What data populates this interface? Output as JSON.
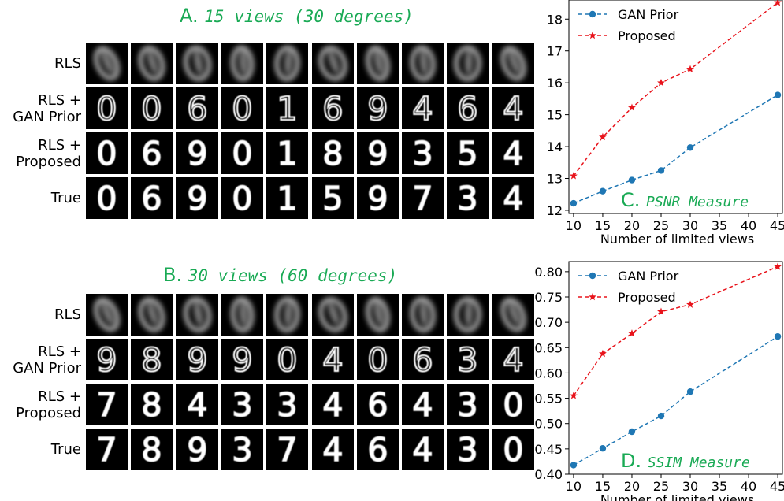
{
  "panel_a": {
    "letter": "A.",
    "description": "15 views (30 degrees)",
    "rows": [
      {
        "label_lines": [
          "RLS"
        ]
      },
      {
        "label_lines": [
          "RLS +",
          "GAN Prior"
        ]
      },
      {
        "label_lines": [
          "RLS +",
          "Proposed"
        ]
      },
      {
        "label_lines": [
          "True"
        ]
      }
    ],
    "true_digits": [
      "0",
      "6",
      "9",
      "0",
      "1",
      "5",
      "9",
      "7",
      "3",
      "4"
    ],
    "proposed_digits": [
      "0",
      "6",
      "9",
      "0",
      "1",
      "8",
      "9",
      "3",
      "5",
      "4"
    ],
    "gan_digits": [
      "0",
      "0",
      "6",
      "0",
      "1",
      "6",
      "9",
      "4",
      "6",
      "4"
    ]
  },
  "panel_b": {
    "letter": "B.",
    "description": "30 views (60 degrees)",
    "rows": [
      {
        "label_lines": [
          "RLS"
        ]
      },
      {
        "label_lines": [
          "RLS +",
          "GAN Prior"
        ]
      },
      {
        "label_lines": [
          "RLS +",
          "Proposed"
        ]
      },
      {
        "label_lines": [
          "True"
        ]
      }
    ],
    "true_digits": [
      "7",
      "8",
      "9",
      "3",
      "7",
      "4",
      "6",
      "4",
      "3",
      "0"
    ],
    "proposed_digits": [
      "7",
      "8",
      "4",
      "3",
      "3",
      "4",
      "6",
      "4",
      "3",
      "0"
    ],
    "gan_digits": [
      "9",
      "8",
      "9",
      "9",
      "0",
      "4",
      "0",
      "6",
      "3",
      "4"
    ]
  },
  "chart_data": [
    {
      "type": "line",
      "label_letter": "C.",
      "label_text": "PSNR Measure",
      "xlabel": "Number of limited views",
      "ylabel": "",
      "x": [
        10,
        15,
        20,
        25,
        30,
        45
      ],
      "xticks": [
        10,
        15,
        20,
        25,
        30,
        35,
        40,
        45
      ],
      "ylim": [
        11.9,
        18.6
      ],
      "yticks": [
        12,
        13,
        14,
        15,
        16,
        17,
        18
      ],
      "legend_position": "top-left",
      "series": [
        {
          "name": "GAN Prior",
          "values": [
            12.22,
            12.6,
            12.95,
            13.25,
            13.97,
            15.62
          ],
          "color": "#1f77b4",
          "marker": "circle"
        },
        {
          "name": "Proposed",
          "values": [
            13.08,
            14.3,
            15.22,
            16.0,
            16.43,
            18.52
          ],
          "color": "#e8131b",
          "marker": "star"
        }
      ]
    },
    {
      "type": "line",
      "label_letter": "D.",
      "label_text": "SSIM Measure",
      "xlabel": "Number of limited views",
      "ylabel": "",
      "x": [
        10,
        15,
        20,
        25,
        30,
        45
      ],
      "xticks": [
        10,
        15,
        20,
        25,
        30,
        35,
        40,
        45
      ],
      "ylim": [
        0.4,
        0.82
      ],
      "yticks": [
        0.4,
        0.45,
        0.5,
        0.55,
        0.6,
        0.65,
        0.7,
        0.75,
        0.8
      ],
      "legend_position": "top-left",
      "series": [
        {
          "name": "GAN Prior",
          "values": [
            0.418,
            0.451,
            0.484,
            0.515,
            0.563,
            0.672
          ],
          "color": "#1f77b4",
          "marker": "circle"
        },
        {
          "name": "Proposed",
          "values": [
            0.555,
            0.638,
            0.678,
            0.721,
            0.735,
            0.81
          ],
          "color": "#e8131b",
          "marker": "star"
        }
      ]
    }
  ]
}
